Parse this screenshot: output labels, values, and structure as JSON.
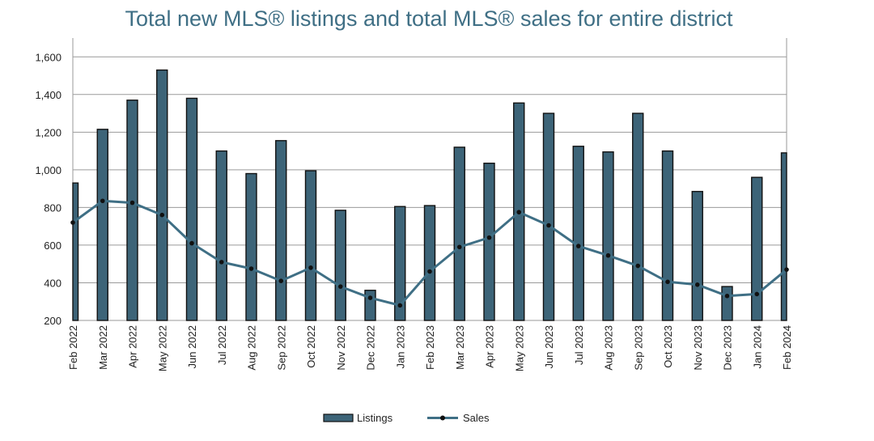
{
  "chart_data": {
    "type": "bar",
    "title": "Total new MLS® listings and total MLS® sales for entire district",
    "categories": [
      "Feb 2022",
      "Mar 2022",
      "Apr 2022",
      "May 2022",
      "Jun 2022",
      "Jul 2022",
      "Aug 2022",
      "Sep 2022",
      "Oct 2022",
      "Nov 2022",
      "Dec 2022",
      "Jan 2023",
      "Feb 2023",
      "Mar 2023",
      "Apr 2023",
      "May 2023",
      "Jun 2023",
      "Jul 2023",
      "Aug 2023",
      "Sep 2023",
      "Oct 2023",
      "Nov 2023",
      "Dec 2023",
      "Jan 2024",
      "Feb 2024"
    ],
    "series": [
      {
        "name": "Listings",
        "kind": "bar",
        "color": "#3d6478",
        "values": [
          930,
          1215,
          1370,
          1530,
          1380,
          1100,
          980,
          1155,
          995,
          785,
          360,
          805,
          810,
          1120,
          1035,
          1355,
          1300,
          1125,
          1095,
          1300,
          1100,
          885,
          380,
          960,
          1090
        ]
      },
      {
        "name": "Sales",
        "kind": "line",
        "color": "#3f6f85",
        "values": [
          720,
          835,
          825,
          760,
          610,
          510,
          475,
          410,
          480,
          380,
          320,
          280,
          460,
          590,
          640,
          775,
          705,
          595,
          545,
          490,
          405,
          390,
          330,
          340,
          470
        ]
      }
    ],
    "ylim": [
      200,
      1700
    ],
    "yticks": [
      200,
      400,
      600,
      800,
      1000,
      1200,
      1400,
      1600
    ],
    "ytick_labels": [
      "200",
      "400",
      "600",
      "800",
      "1,000",
      "1,200",
      "1,400",
      "1,600"
    ],
    "grid": true,
    "legend": "bottom-center"
  }
}
